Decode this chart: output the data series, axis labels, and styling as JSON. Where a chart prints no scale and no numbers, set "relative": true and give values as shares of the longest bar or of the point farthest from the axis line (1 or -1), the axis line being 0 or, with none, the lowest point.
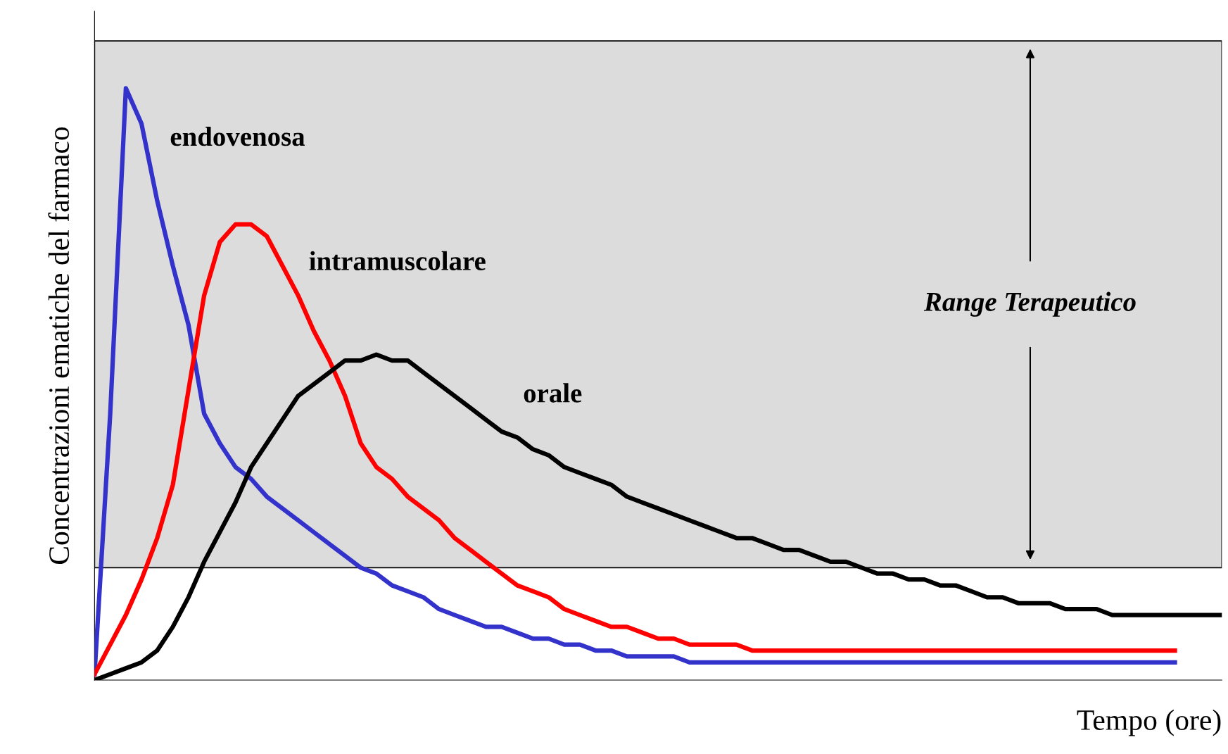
{
  "chart_data": {
    "type": "line",
    "relative": true,
    "xlabel": "Tempo (ore)",
    "ylabel": "Concentrazioni ematiche del farmaco",
    "categories": [
      null,
      null,
      null,
      null,
      null,
      null,
      null,
      null,
      null,
      null,
      null,
      null,
      null,
      null,
      null,
      null,
      null,
      null,
      null,
      null,
      null,
      null,
      null,
      null,
      null,
      null,
      null,
      null,
      null,
      null,
      null,
      null,
      null,
      null,
      null,
      null,
      null,
      null,
      null,
      null,
      null,
      null,
      null,
      null,
      null,
      null,
      null,
      null,
      null,
      null,
      null,
      null,
      null,
      null,
      null,
      null,
      null,
      null,
      null,
      null,
      null,
      null,
      null,
      null,
      null,
      null,
      null,
      null,
      null,
      null,
      null,
      null,
      null
    ],
    "series": [
      {
        "name": "endovenosa",
        "color": "#3333cc",
        "values": [
          0.01,
          0.45,
          1.0,
          0.94,
          0.81,
          0.7,
          0.6,
          0.45,
          0.4,
          0.36,
          0.34,
          0.31,
          0.29,
          0.27,
          0.25,
          0.23,
          0.21,
          0.19,
          0.18,
          0.16,
          0.15,
          0.14,
          0.12,
          0.11,
          0.1,
          0.09,
          0.09,
          0.08,
          0.07,
          0.07,
          0.06,
          0.06,
          0.05,
          0.05,
          0.04,
          0.04,
          0.04,
          0.04,
          0.03,
          0.03,
          0.03,
          0.03,
          0.03,
          0.03,
          0.03,
          0.03,
          0.03,
          0.03,
          0.03,
          0.03,
          0.03,
          0.03,
          0.03,
          0.03,
          0.03,
          0.03,
          0.03,
          0.03,
          0.03,
          0.03,
          0.03,
          0.03,
          0.03,
          0.03,
          0.03,
          0.03,
          0.03,
          0.03,
          0.03,
          0.03,
          null,
          null,
          null
        ]
      },
      {
        "name": "intramuscolare",
        "color": "#ff0000",
        "values": [
          0.01,
          0.06,
          0.11,
          0.17,
          0.24,
          0.33,
          0.49,
          0.65,
          0.74,
          0.77,
          0.77,
          0.75,
          0.7,
          0.65,
          0.59,
          0.54,
          0.48,
          0.4,
          0.36,
          0.34,
          0.31,
          0.29,
          0.27,
          0.24,
          0.22,
          0.2,
          0.18,
          0.16,
          0.15,
          0.14,
          0.12,
          0.11,
          0.1,
          0.09,
          0.09,
          0.08,
          0.07,
          0.07,
          0.06,
          0.06,
          0.06,
          0.06,
          0.05,
          0.05,
          0.05,
          0.05,
          0.05,
          0.05,
          0.05,
          0.05,
          0.05,
          0.05,
          0.05,
          0.05,
          0.05,
          0.05,
          0.05,
          0.05,
          0.05,
          0.05,
          0.05,
          0.05,
          0.05,
          0.05,
          0.05,
          0.05,
          0.05,
          0.05,
          0.05,
          0.05,
          null,
          null,
          null
        ]
      },
      {
        "name": "orale",
        "color": "#000000",
        "values": [
          0.0,
          0.01,
          0.02,
          0.03,
          0.05,
          0.09,
          0.14,
          0.2,
          0.25,
          0.3,
          0.36,
          0.4,
          0.44,
          0.48,
          0.5,
          0.52,
          0.54,
          0.54,
          0.55,
          0.54,
          0.54,
          0.52,
          0.5,
          0.48,
          0.46,
          0.44,
          0.42,
          0.41,
          0.39,
          0.38,
          0.36,
          0.35,
          0.34,
          0.33,
          0.31,
          0.3,
          0.29,
          0.28,
          0.27,
          0.26,
          0.25,
          0.24,
          0.24,
          0.23,
          0.22,
          0.22,
          0.21,
          0.2,
          0.2,
          0.19,
          0.18,
          0.18,
          0.17,
          0.17,
          0.16,
          0.16,
          0.15,
          0.14,
          0.14,
          0.13,
          0.13,
          0.13,
          0.12,
          0.12,
          0.12,
          0.11,
          0.11,
          0.11,
          0.11,
          0.11,
          0.11,
          0.11,
          0.11
        ]
      }
    ],
    "bands": [
      {
        "axis": "y",
        "from": 0.19,
        "to": 1.08,
        "label": "Range Terapeutico",
        "color": "#dcdcdc"
      }
    ],
    "legend": false
  }
}
